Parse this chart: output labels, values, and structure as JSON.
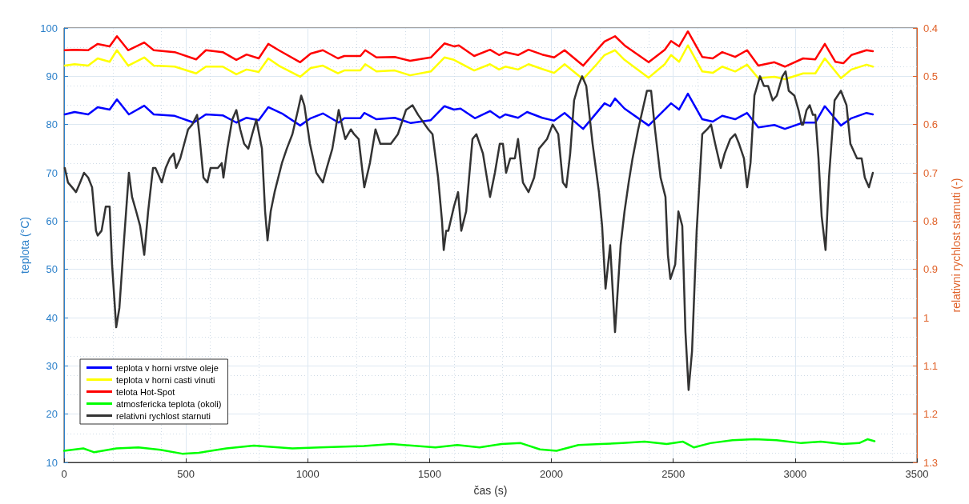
{
  "chart_data": {
    "type": "line",
    "xlabel": "čas (s)",
    "ylabel": "teplota (°C)",
    "y2label": "relativni rychlost starnuti (-)",
    "xlim": [
      0,
      3500
    ],
    "xticks": [
      0,
      500,
      1000,
      1500,
      2000,
      2500,
      3000,
      3500
    ],
    "ylim": [
      10,
      100
    ],
    "yticks": [
      10,
      20,
      30,
      40,
      50,
      60,
      70,
      80,
      90,
      100
    ],
    "y2lim": [
      1.3,
      0.4
    ],
    "y2ticks": [
      0.4,
      0.5,
      0.6,
      0.7,
      0.8,
      0.9,
      1,
      1.1,
      1.2,
      1.3
    ],
    "grid": true,
    "legend": "bottom left",
    "marker": "none",
    "line_style": "solid",
    "series": [
      {
        "name": "teplota v horni vrstve oleje",
        "color": "#0000ff",
        "x": [
          3,
          43,
          99,
          138,
          187,
          217,
          266,
          329,
          368,
          454,
          532,
          582,
          651,
          707,
          749,
          799,
          838,
          894,
          969,
          1012,
          1062,
          1127,
          1150,
          1216,
          1232,
          1282,
          1357,
          1423,
          1505,
          1561,
          1600,
          1627,
          1686,
          1748,
          1788,
          1811,
          1863,
          1900,
          1962,
          2011,
          2054,
          2130,
          2218,
          2241,
          2261,
          2300,
          2399,
          2491,
          2524,
          2560,
          2619,
          2662,
          2701,
          2754,
          2803,
          2849,
          2915,
          2958,
          3033,
          3083,
          3122,
          3188,
          3231,
          3293,
          3319
        ],
        "values": [
          82.1,
          82.6,
          82.1,
          83.6,
          83.1,
          85.2,
          82.1,
          83.9,
          82.1,
          81.8,
          80.4,
          82.1,
          81.9,
          80.4,
          81.4,
          80.9,
          83.6,
          82.3,
          79.8,
          81.3,
          82.3,
          80.4,
          81.3,
          81.3,
          82.4,
          81.1,
          81.4,
          80.3,
          80.9,
          83.8,
          83.1,
          83.3,
          81.3,
          82.8,
          81.4,
          82.1,
          81.4,
          82.6,
          81.4,
          80.8,
          82.4,
          79.1,
          84.4,
          83.8,
          85.4,
          83.3,
          79.8,
          84.4,
          83.1,
          86.4,
          81.1,
          80.6,
          81.8,
          81.1,
          82.4,
          79.4,
          79.9,
          79.1,
          80.4,
          80.4,
          83.8,
          79.8,
          81.3,
          82.4,
          82.1
        ]
      },
      {
        "name": "teplota v horni casti vinuti",
        "color": "#ffff00",
        "x": [
          3,
          43,
          99,
          138,
          187,
          217,
          263,
          329,
          368,
          454,
          542,
          582,
          651,
          707,
          749,
          799,
          838,
          881,
          969,
          1012,
          1062,
          1124,
          1150,
          1216,
          1236,
          1282,
          1357,
          1420,
          1505,
          1561,
          1600,
          1683,
          1748,
          1785,
          1811,
          1863,
          1906,
          1962,
          2011,
          2054,
          2130,
          2186,
          2218,
          2261,
          2300,
          2399,
          2465,
          2491,
          2524,
          2560,
          2619,
          2662,
          2701,
          2754,
          2803,
          2849,
          2915,
          2958,
          3033,
          3083,
          3122,
          3188,
          3231,
          3293,
          3319
        ],
        "values": [
          92.2,
          92.5,
          92.2,
          93.7,
          93.0,
          95.4,
          92.2,
          93.9,
          92.2,
          92.0,
          90.6,
          92.0,
          92.0,
          90.4,
          91.4,
          90.9,
          93.7,
          92.2,
          89.9,
          91.7,
          92.2,
          90.6,
          91.2,
          91.2,
          92.5,
          91.0,
          91.2,
          90.2,
          91.0,
          93.9,
          93.4,
          91.2,
          92.5,
          91.4,
          92.0,
          91.4,
          92.5,
          91.5,
          90.7,
          92.5,
          89.4,
          92.5,
          94.4,
          95.4,
          93.4,
          89.7,
          92.5,
          94.4,
          93.0,
          96.4,
          91.0,
          90.7,
          92.0,
          91.0,
          92.4,
          89.6,
          89.9,
          89.4,
          90.6,
          90.6,
          93.7,
          89.6,
          91.4,
          92.4,
          92.0
        ]
      },
      {
        "name": "telota Hot-Spot",
        "color": "#ff0000",
        "x": [
          3,
          43,
          99,
          138,
          187,
          217,
          263,
          329,
          368,
          454,
          542,
          582,
          651,
          707,
          749,
          799,
          838,
          881,
          969,
          1012,
          1062,
          1124,
          1150,
          1216,
          1236,
          1282,
          1357,
          1420,
          1505,
          1561,
          1600,
          1620,
          1683,
          1748,
          1785,
          1811,
          1863,
          1906,
          1962,
          2011,
          2054,
          2130,
          2186,
          2218,
          2261,
          2300,
          2399,
          2465,
          2491,
          2524,
          2560,
          2619,
          2662,
          2701,
          2754,
          2803,
          2849,
          2915,
          2958,
          3033,
          3083,
          3122,
          3165,
          3198,
          3231,
          3293,
          3319
        ],
        "values": [
          95.4,
          95.5,
          95.4,
          96.7,
          96.2,
          98.3,
          95.4,
          97.0,
          95.4,
          95.0,
          93.5,
          95.4,
          95.0,
          93.4,
          94.5,
          93.7,
          96.7,
          95.4,
          92.9,
          94.7,
          95.4,
          93.7,
          94.2,
          94.2,
          95.4,
          93.9,
          94.0,
          93.2,
          93.9,
          96.8,
          96.2,
          96.4,
          94.2,
          95.5,
          94.4,
          95.0,
          94.4,
          95.5,
          94.5,
          93.9,
          95.4,
          92.2,
          95.4,
          97.2,
          98.3,
          96.4,
          92.9,
          95.5,
          97.3,
          96.2,
          99.3,
          94.0,
          93.7,
          95.0,
          94.0,
          95.4,
          92.2,
          92.9,
          92.0,
          93.7,
          93.5,
          96.7,
          93.0,
          92.7,
          94.4,
          95.4,
          95.2
        ]
      },
      {
        "name": "atmosfericka teplota (okoli)",
        "color": "#00ff00",
        "x": [
          0,
          79,
          124,
          215,
          305,
          395,
          485,
          553,
          666,
          779,
          937,
          1050,
          1231,
          1344,
          1524,
          1614,
          1705,
          1795,
          1874,
          1953,
          2021,
          2111,
          2202,
          2292,
          2382,
          2473,
          2540,
          2585,
          2653,
          2743,
          2834,
          2924,
          3025,
          3105,
          3195,
          3263,
          3297,
          3326
        ],
        "values": [
          12.4,
          12.9,
          12.1,
          12.9,
          13.1,
          12.6,
          11.8,
          12.0,
          12.9,
          13.5,
          12.9,
          13.1,
          13.4,
          13.8,
          13.1,
          13.6,
          13.1,
          13.8,
          14.0,
          12.7,
          12.4,
          13.6,
          13.8,
          14.0,
          14.3,
          13.8,
          14.3,
          13.1,
          14.0,
          14.6,
          14.8,
          14.6,
          14.0,
          14.3,
          13.8,
          14.0,
          14.8,
          14.4
        ]
      },
      {
        "name": "relativni rychlost starnuti",
        "color": "#333333",
        "axis": "y2",
        "x": [
          3,
          16,
          33,
          49,
          66,
          82,
          99,
          115,
          131,
          138,
          154,
          171,
          187,
          197,
          214,
          227,
          246,
          266,
          279,
          296,
          312,
          329,
          345,
          365,
          375,
          401,
          417,
          434,
          450,
          460,
          477,
          493,
          509,
          526,
          546,
          555,
          572,
          588,
          601,
          631,
          647,
          654,
          670,
          690,
          707,
          723,
          739,
          756,
          772,
          789,
          812,
          825,
          835,
          848,
          864,
          894,
          914,
          937,
          960,
          973,
          986,
          1009,
          1035,
          1062,
          1078,
          1101,
          1127,
          1140,
          1154,
          1177,
          1190,
          1209,
          1232,
          1255,
          1278,
          1298,
          1321,
          1341,
          1370,
          1403,
          1430,
          1453,
          1495,
          1512,
          1535,
          1551,
          1558,
          1568,
          1577,
          1600,
          1617,
          1630,
          1650,
          1676,
          1692,
          1719,
          1748,
          1768,
          1788,
          1801,
          1814,
          1831,
          1850,
          1863,
          1883,
          1906,
          1929,
          1949,
          1982,
          2005,
          2028,
          2047,
          2061,
          2077,
          2093,
          2110,
          2126,
          2143,
          2169,
          2195,
          2208,
          2222,
          2241,
          2261,
          2284,
          2300,
          2317,
          2333,
          2356,
          2383,
          2392,
          2409,
          2425,
          2448,
          2468,
          2478,
          2488,
          2508,
          2521,
          2537,
          2550,
          2563,
          2577,
          2596,
          2619,
          2639,
          2655,
          2672,
          2695,
          2711,
          2734,
          2754,
          2770,
          2790,
          2803,
          2817,
          2833,
          2856,
          2872,
          2889,
          2908,
          2925,
          2948,
          2961,
          2974,
          2997,
          3014,
          3027,
          3033,
          3047,
          3060,
          3073,
          3083,
          3096,
          3109,
          3125,
          3139,
          3162,
          3188,
          3211,
          3227,
          3254,
          3273,
          3286,
          3303,
          3319
        ],
        "values": [
          0.69,
          0.72,
          0.73,
          0.74,
          0.72,
          0.7,
          0.71,
          0.73,
          0.82,
          0.83,
          0.82,
          0.77,
          0.77,
          0.89,
          1.02,
          0.98,
          0.84,
          0.7,
          0.75,
          0.78,
          0.81,
          0.87,
          0.78,
          0.69,
          0.69,
          0.72,
          0.69,
          0.67,
          0.66,
          0.69,
          0.67,
          0.64,
          0.61,
          0.6,
          0.58,
          0.62,
          0.71,
          0.72,
          0.69,
          0.69,
          0.68,
          0.71,
          0.65,
          0.59,
          0.57,
          0.61,
          0.64,
          0.65,
          0.62,
          0.59,
          0.65,
          0.78,
          0.84,
          0.78,
          0.74,
          0.68,
          0.65,
          0.62,
          0.57,
          0.54,
          0.56,
          0.64,
          0.7,
          0.72,
          0.69,
          0.65,
          0.57,
          0.6,
          0.63,
          0.61,
          0.62,
          0.63,
          0.73,
          0.68,
          0.61,
          0.64,
          0.64,
          0.64,
          0.62,
          0.57,
          0.56,
          0.58,
          0.61,
          0.62,
          0.71,
          0.8,
          0.86,
          0.82,
          0.82,
          0.77,
          0.74,
          0.82,
          0.78,
          0.63,
          0.62,
          0.66,
          0.75,
          0.7,
          0.64,
          0.64,
          0.7,
          0.67,
          0.67,
          0.63,
          0.72,
          0.74,
          0.71,
          0.65,
          0.63,
          0.6,
          0.62,
          0.72,
          0.73,
          0.66,
          0.55,
          0.52,
          0.5,
          0.52,
          0.64,
          0.74,
          0.81,
          0.94,
          0.85,
          1.03,
          0.85,
          0.78,
          0.72,
          0.67,
          0.61,
          0.55,
          0.53,
          0.53,
          0.61,
          0.71,
          0.75,
          0.87,
          0.92,
          0.89,
          0.78,
          0.81,
          1.03,
          1.15,
          1.07,
          0.82,
          0.62,
          0.61,
          0.6,
          0.64,
          0.69,
          0.66,
          0.63,
          0.62,
          0.64,
          0.67,
          0.73,
          0.68,
          0.54,
          0.5,
          0.52,
          0.52,
          0.55,
          0.54,
          0.5,
          0.49,
          0.53,
          0.54,
          0.57,
          0.6,
          0.6,
          0.57,
          0.56,
          0.58,
          0.58,
          0.67,
          0.79,
          0.86,
          0.71,
          0.55,
          0.53,
          0.56,
          0.64,
          0.67,
          0.67,
          0.71,
          0.73,
          0.7
        ]
      }
    ]
  }
}
